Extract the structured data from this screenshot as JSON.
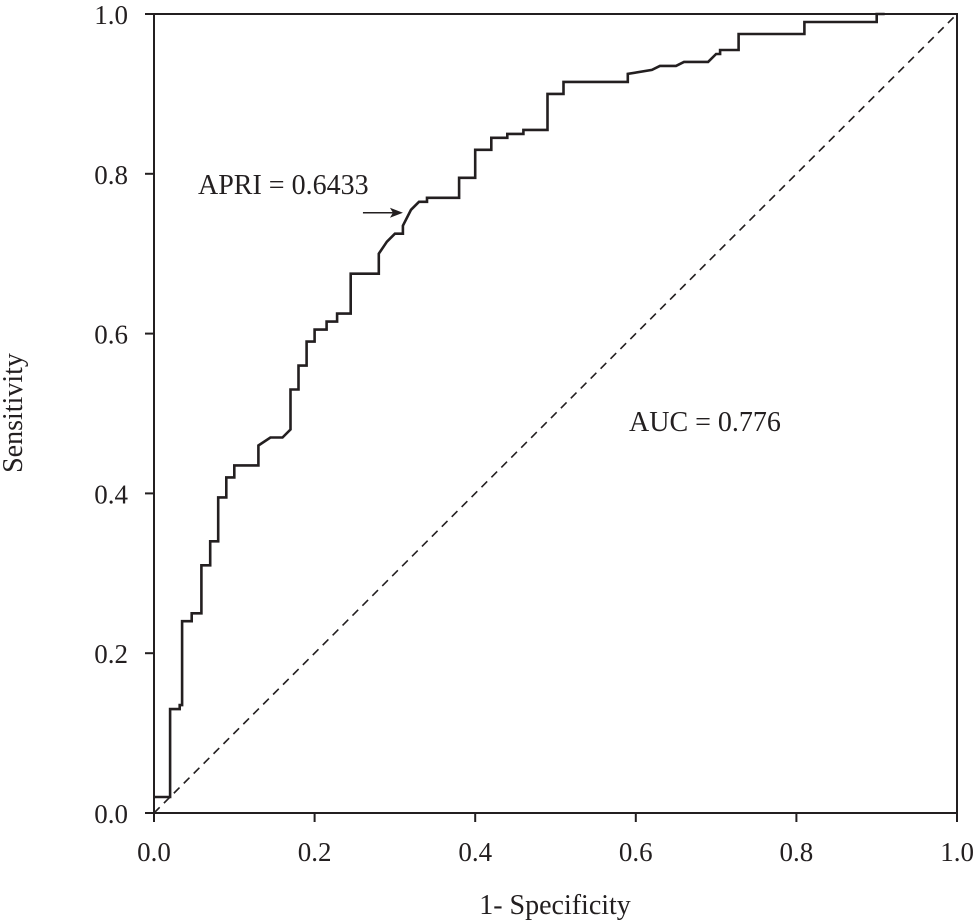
{
  "chart_data": {
    "type": "line",
    "xlabel": "1- Specificity",
    "ylabel": "Sensitivity",
    "xlim": [
      0.0,
      1.0
    ],
    "ylim": [
      0.0,
      1.0
    ],
    "x_ticks": [
      "0.0",
      "0.2",
      "0.4",
      "0.6",
      "0.8",
      "1.0"
    ],
    "y_ticks": [
      "0.0",
      "0.2",
      "0.4",
      "0.6",
      "0.8",
      "1.0"
    ],
    "grid": false,
    "colors": {
      "curve": "#231f20",
      "reference": "#231f20",
      "axes": "#231f20"
    },
    "series": [
      {
        "kind": "roc-curve",
        "x": [
          0.0,
          0.016,
          0.02,
          0.02,
          0.032,
          0.032,
          0.035,
          0.035,
          0.047,
          0.047,
          0.059,
          0.059,
          0.07,
          0.07,
          0.08,
          0.08,
          0.09,
          0.09,
          0.1,
          0.1,
          0.13,
          0.13,
          0.145,
          0.16,
          0.17,
          0.17,
          0.18,
          0.18,
          0.19,
          0.19,
          0.2,
          0.2,
          0.215,
          0.215,
          0.228,
          0.228,
          0.245,
          0.245,
          0.28,
          0.28,
          0.29,
          0.3,
          0.31,
          0.31,
          0.32,
          0.33,
          0.34,
          0.34,
          0.38,
          0.38,
          0.4,
          0.4,
          0.42,
          0.42,
          0.44,
          0.44,
          0.46,
          0.46,
          0.49,
          0.49,
          0.51,
          0.51,
          0.59,
          0.59,
          0.62,
          0.63,
          0.65,
          0.66,
          0.69,
          0.7,
          0.705,
          0.705,
          0.728,
          0.728,
          0.81,
          0.81,
          0.9,
          0.9,
          0.91
        ],
        "y": [
          0.02,
          0.02,
          0.02,
          0.13,
          0.13,
          0.135,
          0.135,
          0.24,
          0.24,
          0.25,
          0.25,
          0.31,
          0.31,
          0.34,
          0.34,
          0.395,
          0.395,
          0.42,
          0.42,
          0.435,
          0.435,
          0.46,
          0.47,
          0.47,
          0.48,
          0.53,
          0.53,
          0.56,
          0.56,
          0.59,
          0.59,
          0.605,
          0.605,
          0.615,
          0.615,
          0.625,
          0.625,
          0.675,
          0.675,
          0.7,
          0.715,
          0.725,
          0.725,
          0.735,
          0.755,
          0.765,
          0.765,
          0.77,
          0.77,
          0.795,
          0.795,
          0.83,
          0.83,
          0.845,
          0.845,
          0.85,
          0.85,
          0.855,
          0.855,
          0.9,
          0.9,
          0.915,
          0.915,
          0.925,
          0.93,
          0.935,
          0.935,
          0.94,
          0.94,
          0.95,
          0.95,
          0.955,
          0.955,
          0.975,
          0.975,
          0.99,
          0.99,
          1.0,
          1.0
        ]
      },
      {
        "kind": "reference-diagonal",
        "x": [
          0.0,
          1.0
        ],
        "y": [
          0.0,
          1.0
        ]
      }
    ],
    "annotations": {
      "cutoff_label": "APRI = 0.6433",
      "cutoff_point": {
        "x": 0.315,
        "y": 0.755
      },
      "auc_label": "AUC = 0.776"
    }
  }
}
